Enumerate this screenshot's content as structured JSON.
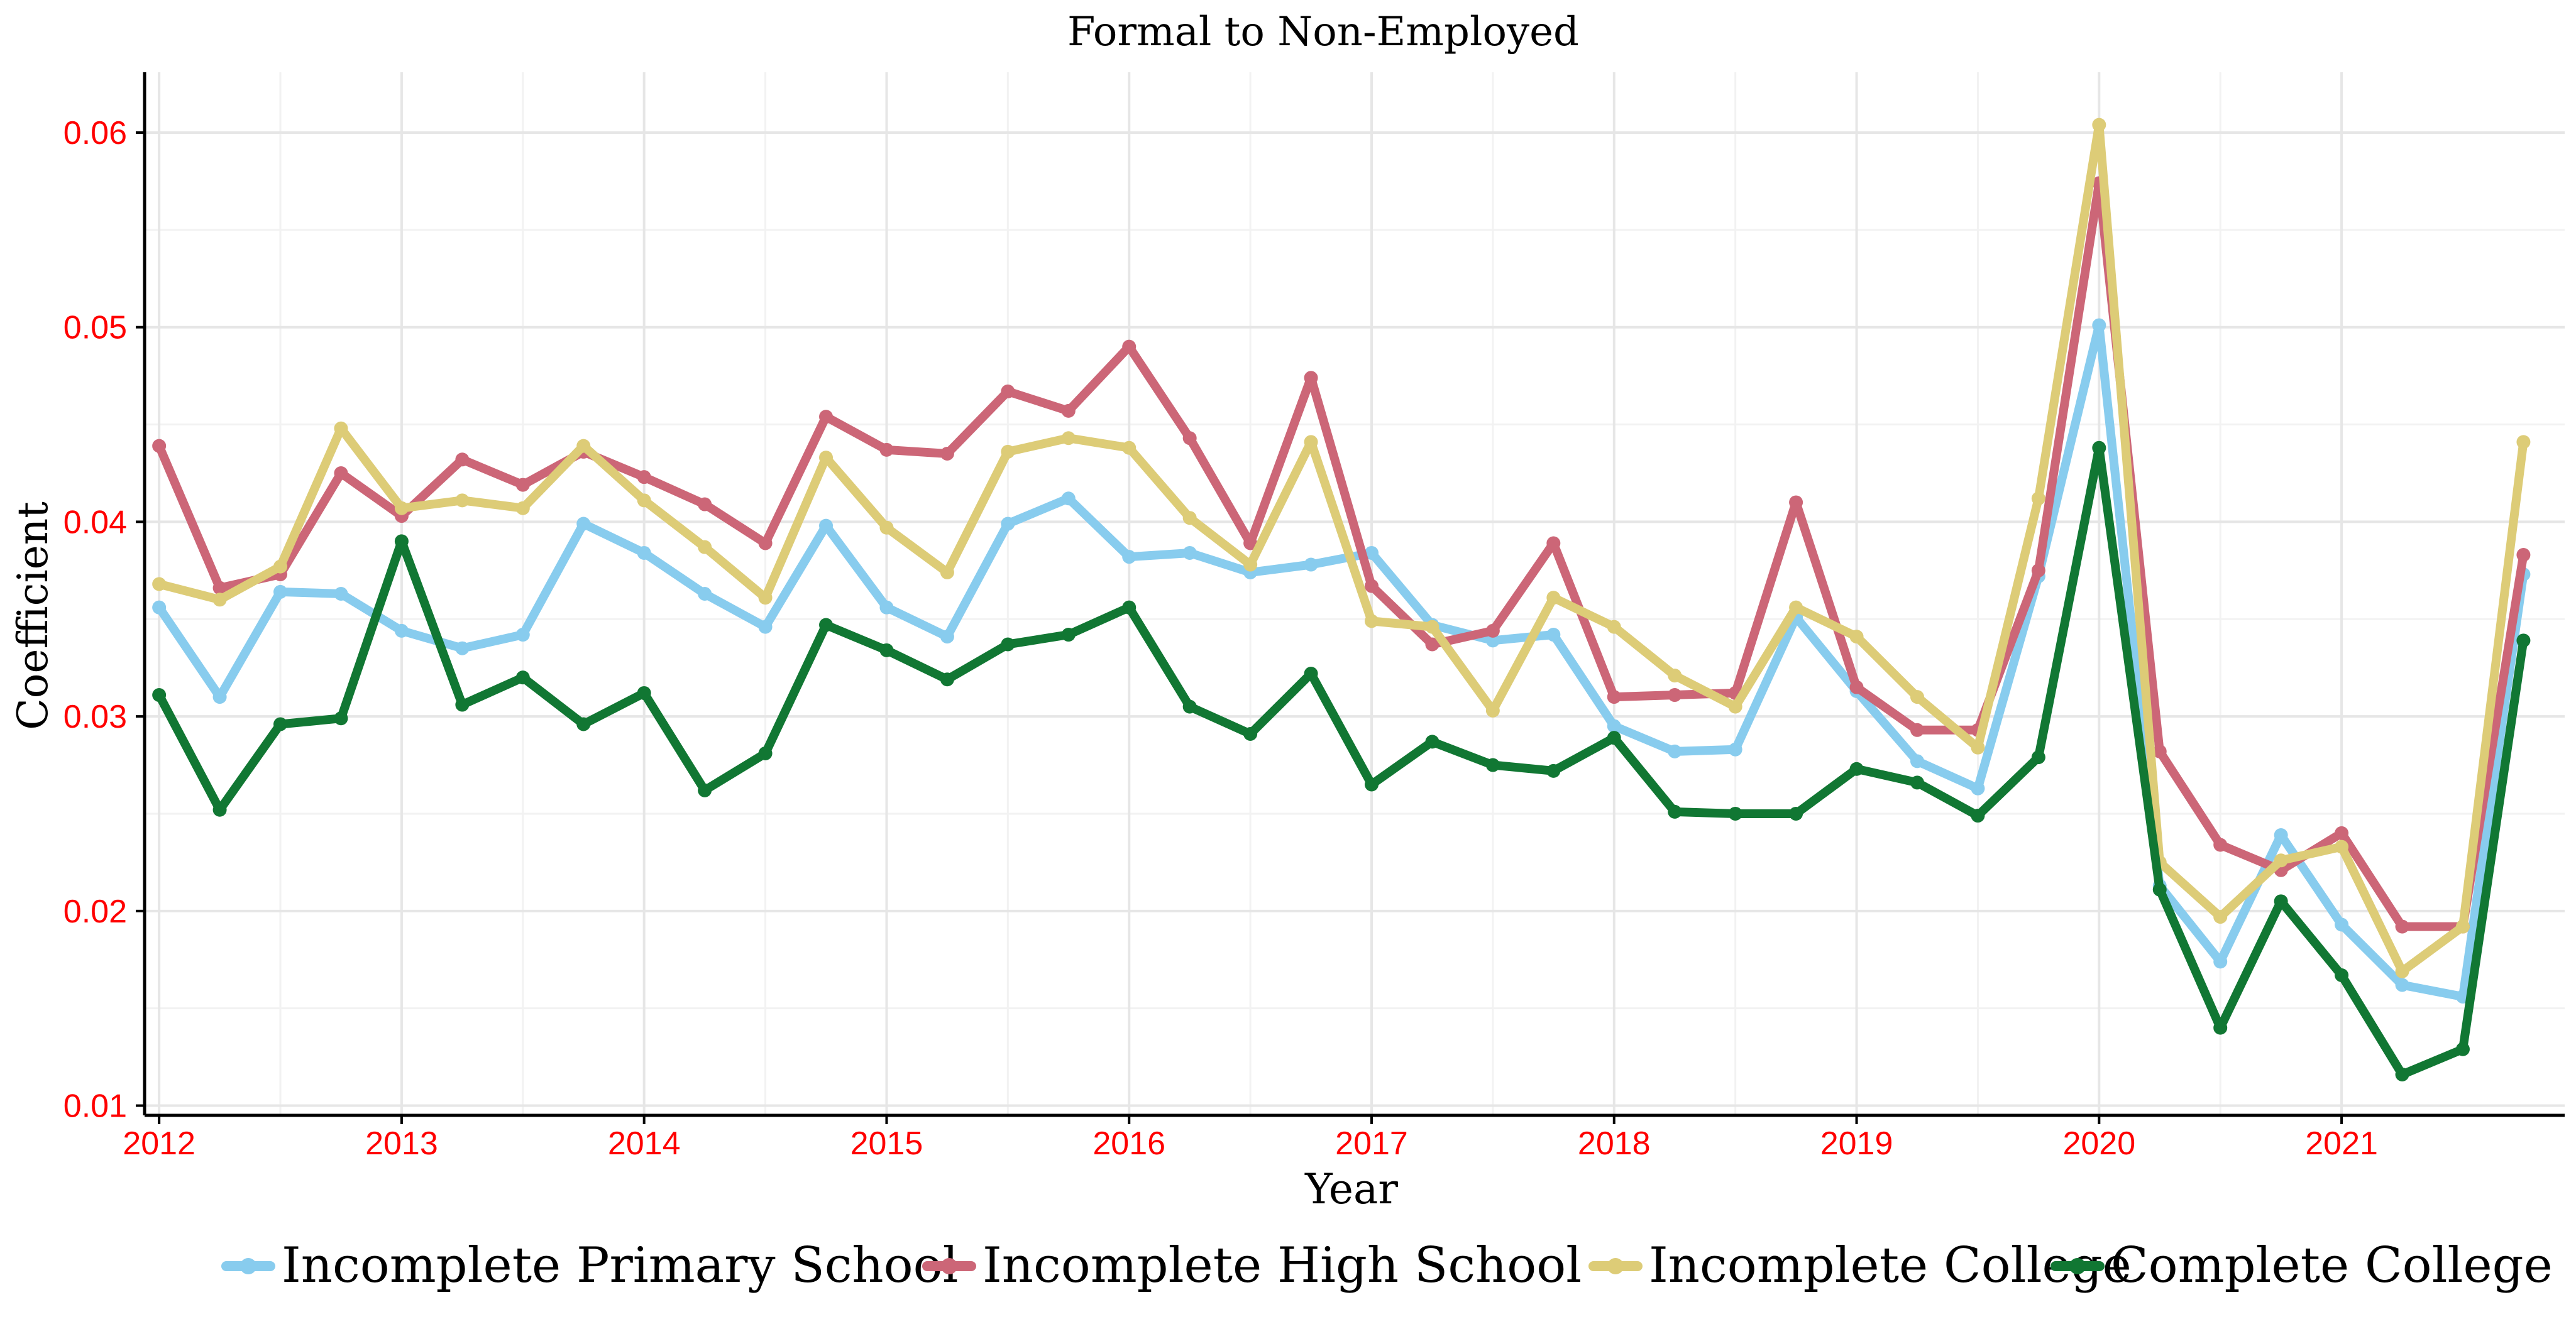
{
  "chart_data": {
    "type": "line",
    "title": "Formal to Non-Employed",
    "xlabel": "Year",
    "ylabel": "Coefficient",
    "xlim": [
      2011.94,
      2021.92
    ],
    "ylim": [
      0.0095,
      0.0631
    ],
    "x_ticks": [
      2012,
      2013,
      2014,
      2015,
      2016,
      2017,
      2018,
      2019,
      2020,
      2021
    ],
    "x_tick_labels": [
      "2012",
      "2013",
      "2014",
      "2015",
      "2016",
      "2017",
      "2018",
      "2019",
      "2020",
      "2021"
    ],
    "y_ticks": [
      0.01,
      0.02,
      0.03,
      0.04,
      0.05,
      0.06
    ],
    "y_tick_labels": [
      "0.01",
      "0.02",
      "0.03",
      "0.04",
      "0.05",
      "0.06"
    ],
    "grid": true,
    "legend_position": "bottom",
    "x": [
      2012.0,
      2012.25,
      2012.5,
      2012.75,
      2013.0,
      2013.25,
      2013.5,
      2013.75,
      2014.0,
      2014.25,
      2014.5,
      2014.75,
      2015.0,
      2015.25,
      2015.5,
      2015.75,
      2016.0,
      2016.25,
      2016.5,
      2016.75,
      2017.0,
      2017.25,
      2017.5,
      2017.75,
      2018.0,
      2018.25,
      2018.5,
      2018.75,
      2019.0,
      2019.25,
      2019.5,
      2019.75,
      2020.0,
      2020.25,
      2020.5,
      2020.75,
      2021.0,
      2021.25,
      2021.5,
      2021.75
    ],
    "series": [
      {
        "name": "Incomplete Primary School",
        "color": "#88ccee",
        "values": [
          0.0356,
          0.031,
          0.0364,
          0.0363,
          0.0344,
          0.0335,
          0.0342,
          0.0399,
          0.0384,
          0.0363,
          0.0346,
          0.0398,
          0.0356,
          0.0341,
          0.0399,
          0.0412,
          0.0382,
          0.0384,
          0.0374,
          0.0378,
          0.0384,
          0.0347,
          0.0339,
          0.0342,
          0.0295,
          0.0282,
          0.0283,
          0.0351,
          0.0313,
          0.0277,
          0.0263,
          0.0372,
          0.0501,
          0.0213,
          0.0174,
          0.0239,
          0.0193,
          0.0162,
          0.0156,
          0.0373
        ]
      },
      {
        "name": "Incomplete High School",
        "color": "#cc6677",
        "values": [
          0.0439,
          0.0366,
          0.0373,
          0.0425,
          0.0403,
          0.0432,
          0.0419,
          0.0436,
          0.0423,
          0.0409,
          0.0389,
          0.0454,
          0.0437,
          0.0435,
          0.0467,
          0.0457,
          0.049,
          0.0443,
          0.0389,
          0.0474,
          0.0367,
          0.0337,
          0.0344,
          0.0389,
          0.031,
          0.0311,
          0.0312,
          0.041,
          0.0315,
          0.0293,
          0.0293,
          0.0375,
          0.0574,
          0.0282,
          0.0234,
          0.0221,
          0.024,
          0.0192,
          0.0192,
          0.0383
        ]
      },
      {
        "name": "Incomplete College",
        "color": "#ddcc77",
        "values": [
          0.0368,
          0.036,
          0.0377,
          0.0448,
          0.0407,
          0.0411,
          0.0407,
          0.0439,
          0.0411,
          0.0387,
          0.0361,
          0.0433,
          0.0397,
          0.0374,
          0.0436,
          0.0443,
          0.0438,
          0.0402,
          0.0378,
          0.0441,
          0.0349,
          0.0346,
          0.0303,
          0.0361,
          0.0346,
          0.0321,
          0.0305,
          0.0356,
          0.0341,
          0.031,
          0.0284,
          0.0412,
          0.0604,
          0.0225,
          0.0197,
          0.0226,
          0.0233,
          0.0169,
          0.0192,
          0.0441
        ]
      },
      {
        "name": "Complete College",
        "color": "#117733",
        "values": [
          0.0311,
          0.0252,
          0.0296,
          0.0299,
          0.039,
          0.0306,
          0.032,
          0.0296,
          0.0312,
          0.0262,
          0.0281,
          0.0347,
          0.0334,
          0.0319,
          0.0337,
          0.0342,
          0.0356,
          0.0305,
          0.0291,
          0.0322,
          0.0265,
          0.0287,
          0.0275,
          0.0272,
          0.0289,
          0.0251,
          0.025,
          0.025,
          0.0273,
          0.0266,
          0.0249,
          0.0279,
          0.0438,
          0.0211,
          0.014,
          0.0205,
          0.0167,
          0.0116,
          0.0129,
          0.0339
        ]
      }
    ]
  }
}
